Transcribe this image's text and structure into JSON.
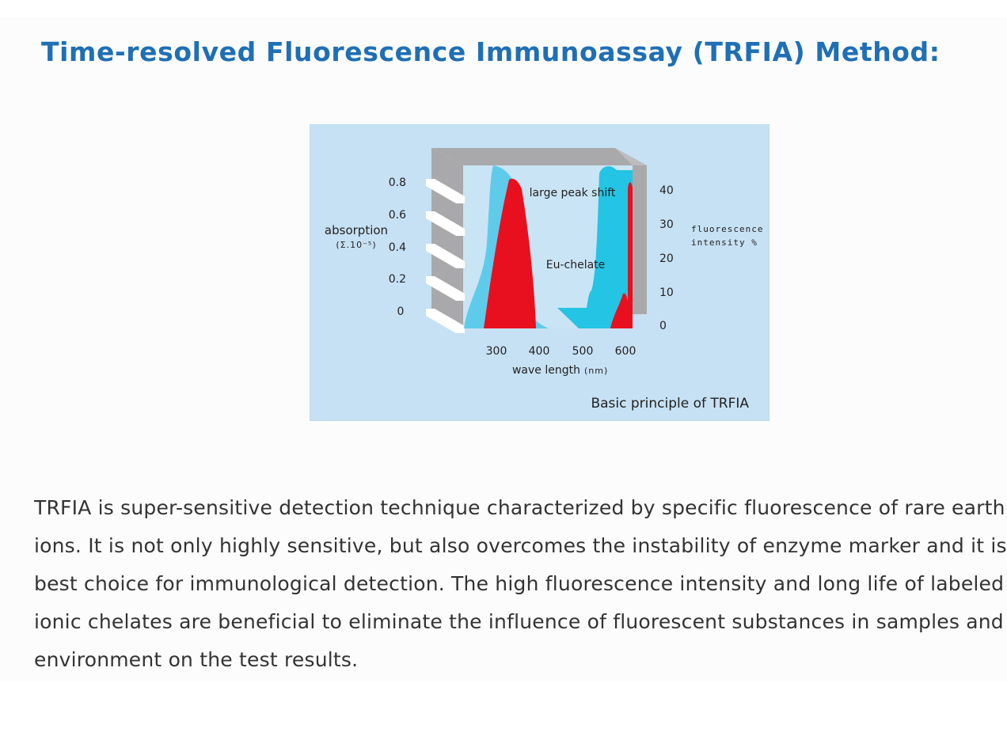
{
  "page": {
    "title": "Time-resolved Fluorescence Immunoassay (TRFIA) Method:",
    "title_color": "#1f6fb5"
  },
  "figure": {
    "caption": "Basic principle of TRFIA",
    "background_color": "#c6e1f4",
    "left_axis": {
      "label": "absorption",
      "unit": "(Σ.10⁻⁵)",
      "ticks": [
        "0.8",
        "0.6",
        "0.4",
        "0.2",
        "0"
      ]
    },
    "right_axis": {
      "label_line1": "fluorescence",
      "label_line2": "intensity %",
      "ticks": [
        "40",
        "30",
        "20",
        "10",
        "0"
      ]
    },
    "x_axis": {
      "label": "wave length",
      "unit": "(nm)",
      "ticks": [
        "300",
        "400",
        "500",
        "600"
      ]
    },
    "annotations": {
      "peak_shift": "large peak shift",
      "chelate": "Eu-chelate"
    },
    "colors": {
      "absorption_curve": "#5fcbea",
      "fluorescence_curve": "#e8101e",
      "emission_curve": "#24c4e4",
      "frame": "#a9a9ab"
    }
  },
  "body": {
    "lines": [
      "TRFIA is super-sensitive detection technique characterized by specific fluorescence of rare earth",
      "ions. It is not only highly sensitive, but also overcomes the instability of enzyme marker and it is the",
      "best choice for immunological detection. The high fluorescence intensity and long life of labeled",
      "ionic chelates are beneficial to eliminate the influence of fluorescent substances in samples and",
      "environment on the test results."
    ]
  }
}
